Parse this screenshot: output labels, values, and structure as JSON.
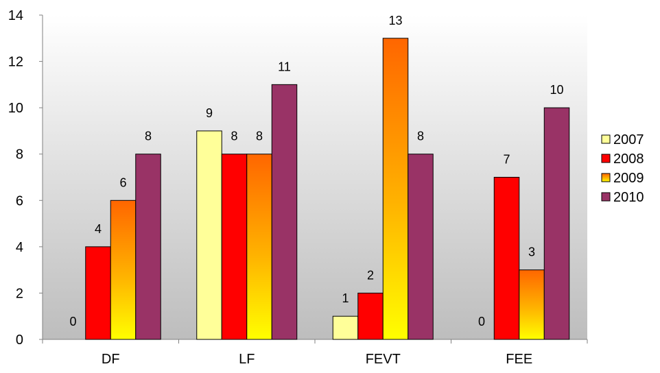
{
  "chart_data": {
    "type": "bar",
    "title": "",
    "xlabel": "",
    "ylabel": "",
    "categories": [
      "DF",
      "LF",
      "FEVT",
      "FEE"
    ],
    "series": [
      {
        "name": "2007",
        "values": [
          0,
          9,
          1,
          0
        ],
        "color": "#FFFF99",
        "style": "flat"
      },
      {
        "name": "2008",
        "values": [
          4,
          8,
          2,
          7
        ],
        "color": "#FF0000",
        "style": "flat"
      },
      {
        "name": "2009",
        "values": [
          6,
          8,
          13,
          3
        ],
        "color": "#FF9900",
        "style": "gradient-yellow-orange"
      },
      {
        "name": "2010",
        "values": [
          8,
          11,
          8,
          10
        ],
        "color": "#993366",
        "style": "flat"
      }
    ],
    "ylim": [
      0,
      14
    ],
    "yticks": [
      "0",
      "2",
      "4",
      "6",
      "8",
      "10",
      "12",
      "14"
    ],
    "data_labels": [
      [
        "0",
        "9",
        "1",
        "0"
      ],
      [
        "4",
        "8",
        "2",
        "7"
      ],
      [
        "6",
        "8",
        "13",
        "3"
      ],
      [
        "8",
        "11",
        "8",
        "10"
      ]
    ],
    "grid": false,
    "plot_background": "gradient white-to-gray",
    "legend_position": "right"
  }
}
